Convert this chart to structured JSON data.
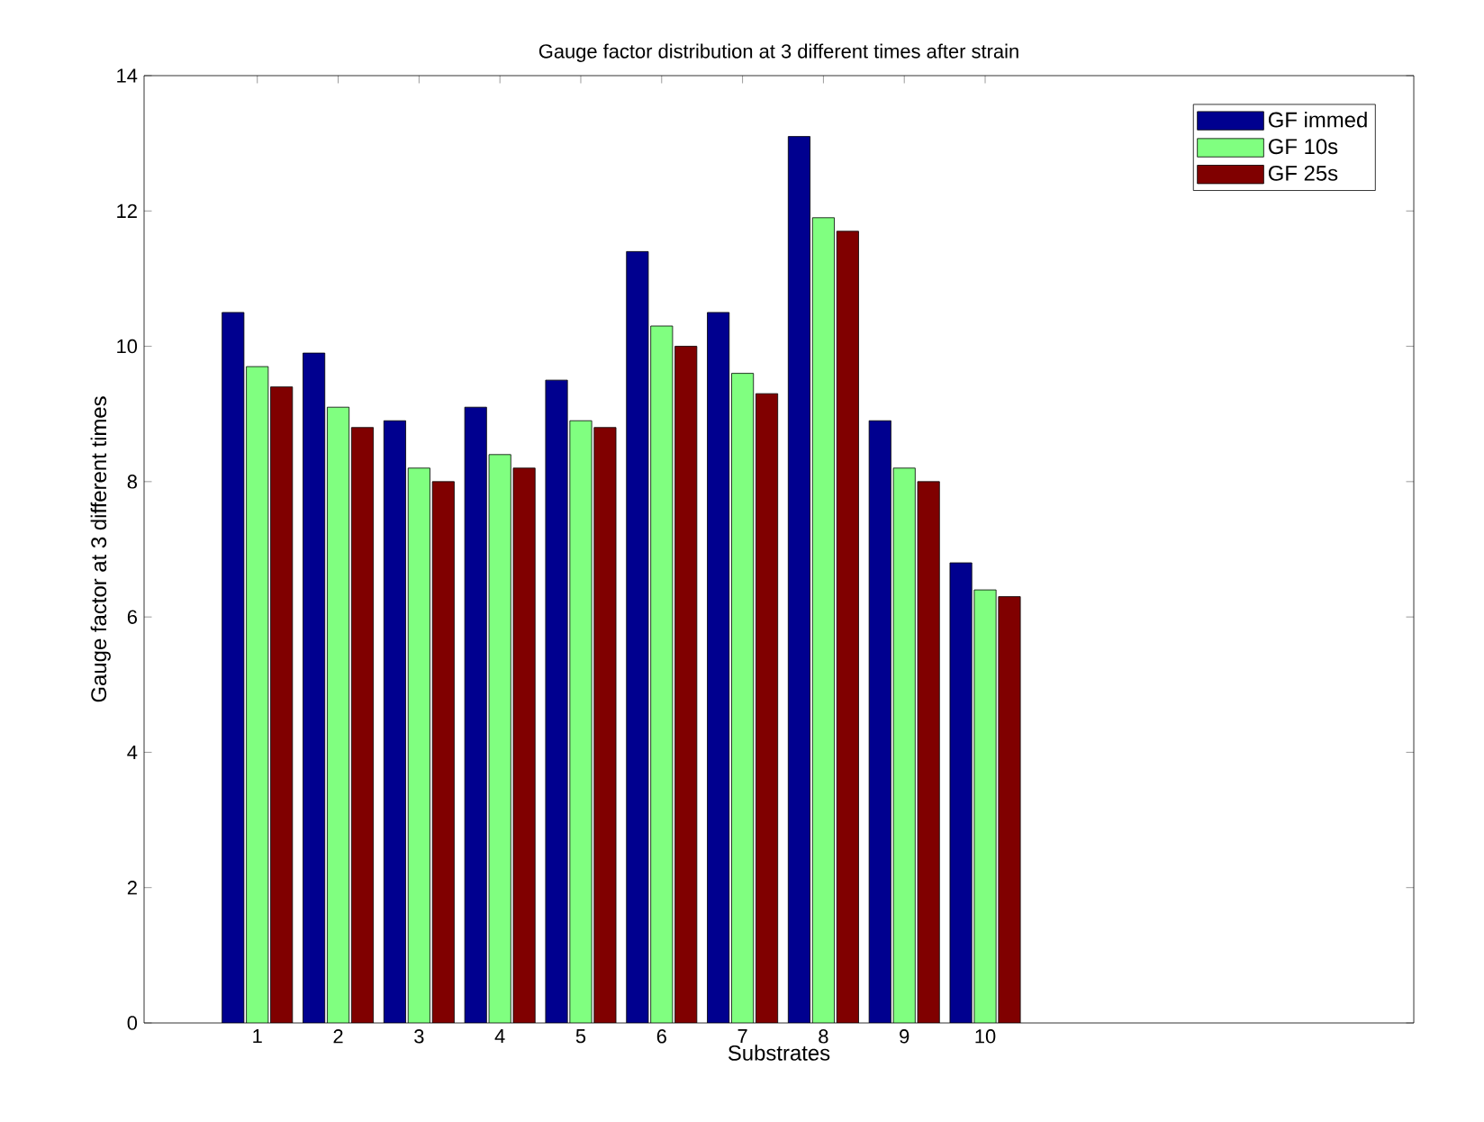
{
  "chart_data": {
    "type": "bar",
    "title": "Gauge factor distribution at 3 different times after strain",
    "xlabel": "Substrates",
    "ylabel": "Gauge factor at 3 different times",
    "x": [
      1,
      2,
      3,
      4,
      5,
      6,
      7,
      8,
      9,
      10
    ],
    "xlim": [
      -0.4,
      15.3
    ],
    "xticks": [
      1,
      2,
      3,
      4,
      5,
      6,
      7,
      8,
      9,
      10
    ],
    "ylim": [
      0,
      14
    ],
    "yticks": [
      0,
      2,
      4,
      6,
      8,
      10,
      12,
      14
    ],
    "legend": "top right",
    "grid": false,
    "series": [
      {
        "name": "GF immed",
        "color": "#00008f",
        "values": [
          10.5,
          9.9,
          8.9,
          9.1,
          9.5,
          11.4,
          10.5,
          13.1,
          8.9,
          6.8
        ]
      },
      {
        "name": "GF 10s",
        "color": "#80ff80",
        "values": [
          9.7,
          9.1,
          8.2,
          8.4,
          8.9,
          10.3,
          9.6,
          11.9,
          8.2,
          6.4
        ]
      },
      {
        "name": "GF 25s",
        "color": "#800000",
        "values": [
          9.4,
          8.8,
          8.0,
          8.2,
          8.8,
          10.0,
          9.3,
          11.7,
          8.0,
          6.3
        ]
      }
    ]
  }
}
